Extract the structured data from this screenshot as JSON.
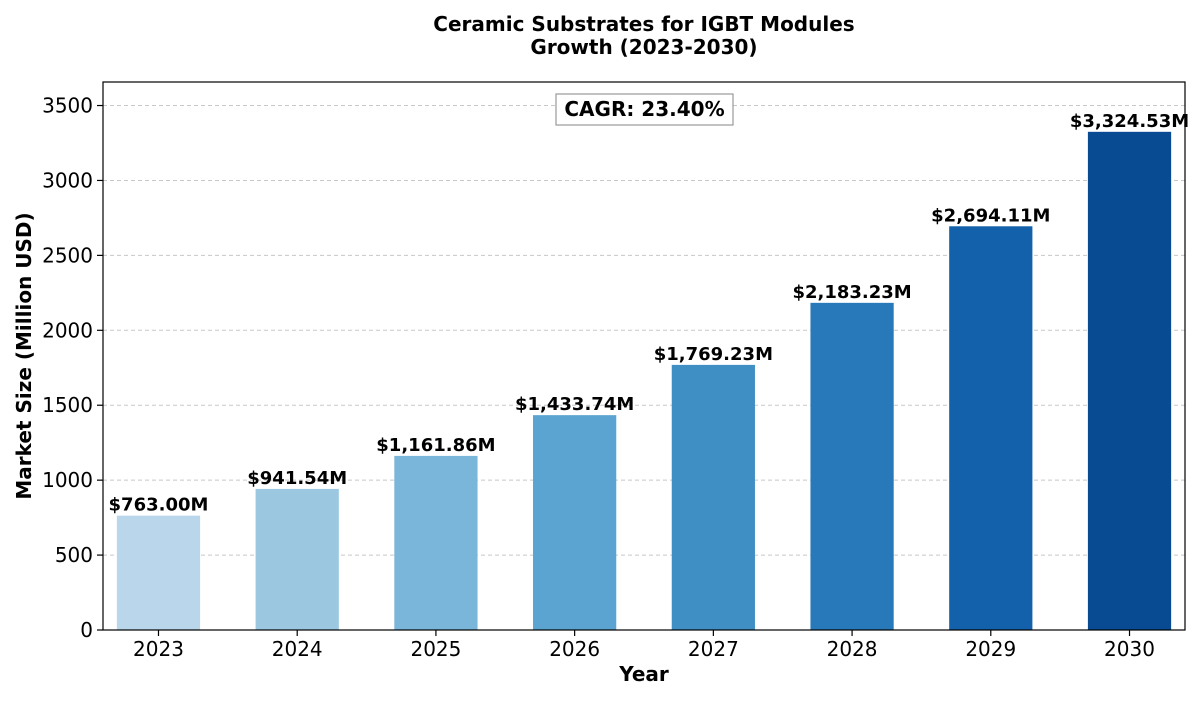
{
  "chart_data": {
    "type": "bar",
    "title_lines": [
      "Ceramic Substrates for IGBT Modules",
      "Growth (2023-2030)"
    ],
    "xlabel": "Year",
    "ylabel": "Market Size (Million USD)",
    "categories": [
      "2023",
      "2024",
      "2025",
      "2026",
      "2027",
      "2028",
      "2029",
      "2030"
    ],
    "values": [
      763.0,
      941.54,
      1161.86,
      1433.74,
      1769.23,
      2183.23,
      2694.11,
      3324.53
    ],
    "value_labels": [
      "$763.00M",
      "$941.54M",
      "$1,161.86M",
      "$1,433.74M",
      "$1,769.23M",
      "$2,183.23M",
      "$2,694.11M",
      "$3,324.53M"
    ],
    "bar_colors": [
      "#b9d6eb",
      "#9bc8e0",
      "#79b6d9",
      "#5ba3d0",
      "#3f8fc5",
      "#2879ba",
      "#1361aa",
      "#084b93"
    ],
    "yticks": [
      0,
      500,
      1000,
      1500,
      2000,
      2500,
      3000,
      3500
    ],
    "ylim": [
      0,
      3657
    ],
    "grid": "y-dashed",
    "annotation": "CAGR: 23.40%"
  }
}
